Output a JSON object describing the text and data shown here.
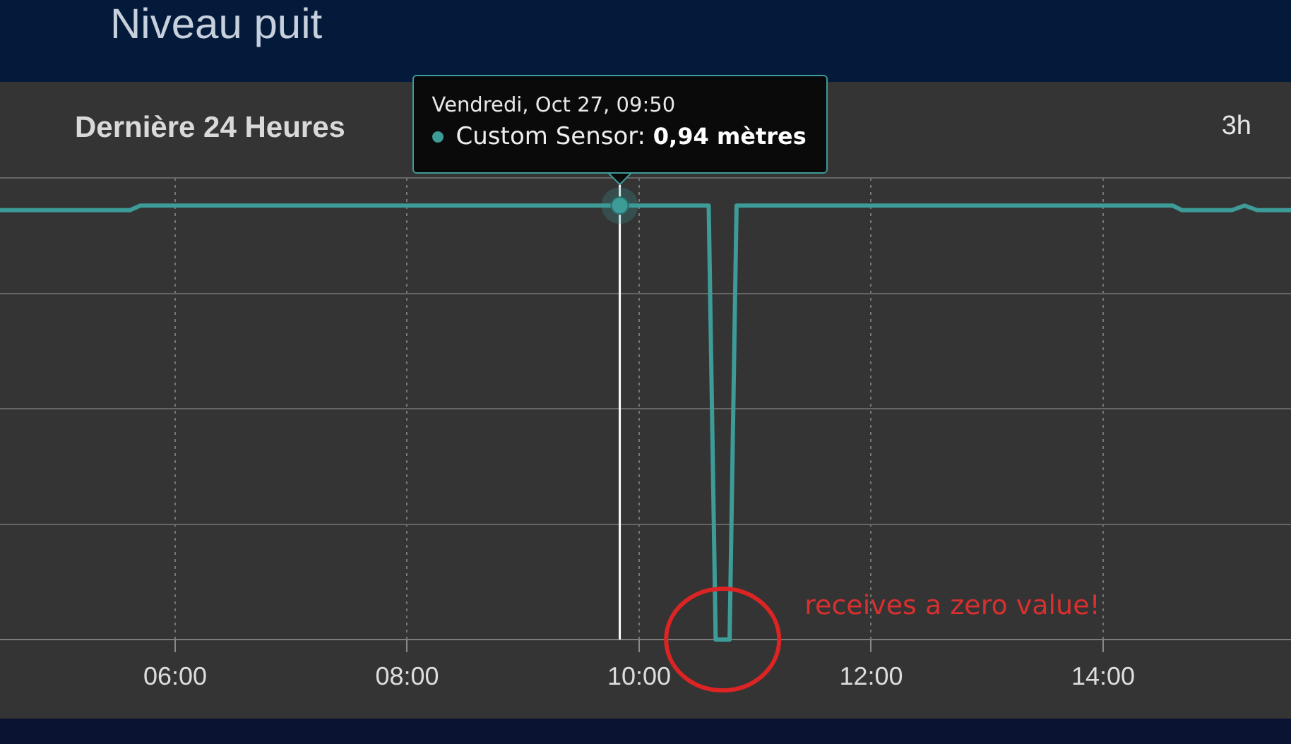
{
  "chart_data": {
    "type": "line",
    "title": "Niveau puit",
    "subtitle": "Dernière 24 Heures",
    "annotations": [
      "Vendredi, Oct 27, 09:50",
      "3h",
      "receives a zero value!"
    ],
    "series": [
      {
        "name": "Custom Sensor:",
        "color": "#3d9b98",
        "x": [
          4.49,
          5.61,
          5.7,
          9.8333,
          10.6,
          10.66,
          10.78,
          10.84,
          14.6,
          14.68,
          15.11,
          15.22,
          15.33,
          15.62
        ],
        "values": [
          0.93,
          0.93,
          0.94,
          0.94,
          0.94,
          0,
          0,
          0.94,
          0.94,
          0.93,
          0.93,
          0.94,
          0.93,
          0.93
        ],
        "value_labels": [
          null,
          null,
          null,
          "0,94 mètres",
          null,
          null,
          null,
          null,
          null,
          null,
          null,
          null,
          null,
          null
        ]
      }
    ],
    "xlim": [
      4.49,
      15.62
    ],
    "xticks": [
      {
        "value": 6,
        "label": "06:00"
      },
      {
        "value": 8,
        "label": "08:00"
      },
      {
        "value": 10,
        "label": "10:00"
      },
      {
        "value": 12,
        "label": "12:00"
      },
      {
        "value": 14,
        "label": "14:00"
      }
    ],
    "ylim": [
      0,
      1
    ],
    "yticks": [
      {
        "value": 0,
        "label": null
      },
      {
        "value": 0.25,
        "label": null
      },
      {
        "value": 0.5,
        "label": null
      },
      {
        "value": 0.75,
        "label": null
      },
      {
        "value": 1,
        "label": null
      }
    ],
    "tick_labels": "x",
    "grid": true,
    "line_style": "solid",
    "ref_lines": [
      {
        "axis": "x",
        "value": 9.8333,
        "color": "#ffffff"
      }
    ]
  }
}
